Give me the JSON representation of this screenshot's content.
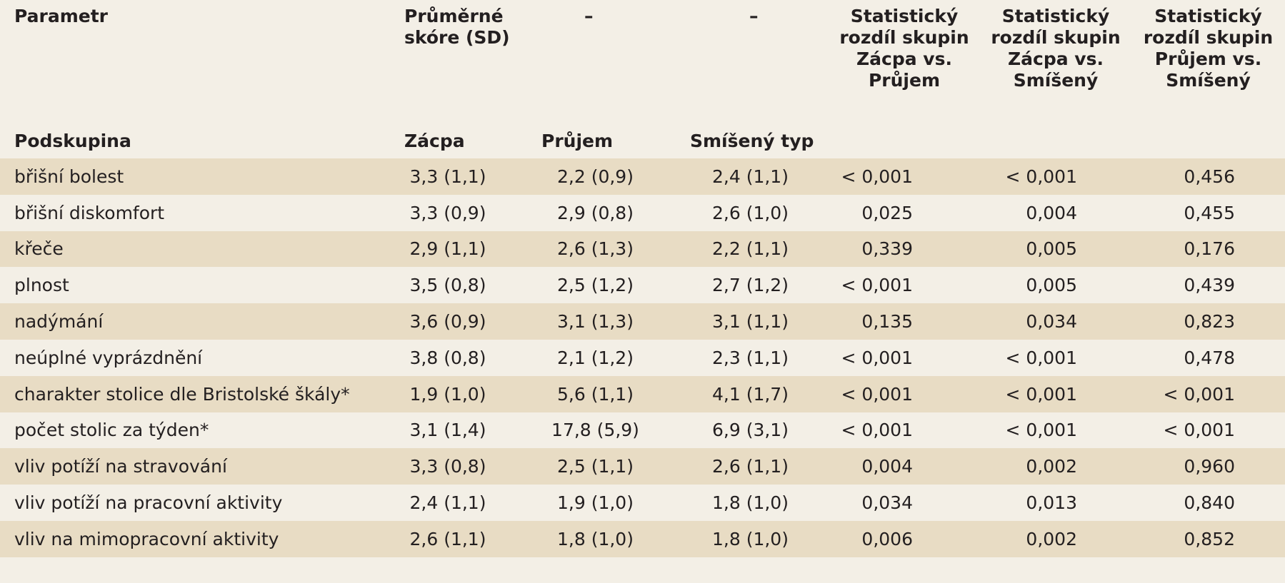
{
  "header": {
    "row1": {
      "parametr": "Parametr",
      "mean_score_line1": "Průměrné",
      "mean_score_line2": "skóre (SD)",
      "dash1": "–",
      "dash2": "–",
      "stat1": [
        "Statistický",
        "rozdíl skupin",
        "Zácpa vs.",
        "Průjem"
      ],
      "stat2": [
        "Statistický",
        "rozdíl skupin",
        "Zácpa vs.",
        "Smíšený"
      ],
      "stat3": [
        "Statistický",
        "rozdíl skupin",
        "Průjem vs.",
        "Smíšený"
      ]
    },
    "row2": {
      "podskupina": "Podskupina",
      "zacpa": "Zácpa",
      "prujem": "Průjem",
      "smiseny": "Smíšený typ"
    }
  },
  "rows": [
    {
      "label": "břišní bolest",
      "zacpa": "3,3 (1,1)",
      "prujem": "2,2 (0,9)",
      "smiseny": "2,4 (1,1)",
      "p1": "< 0,001",
      "p2": "< 0,001",
      "p3": "0,456"
    },
    {
      "label": "břišní diskomfort",
      "zacpa": "3,3 (0,9)",
      "prujem": "2,9 (0,8)",
      "smiseny": "2,6 (1,0)",
      "p1": "0,025",
      "p2": "0,004",
      "p3": "0,455"
    },
    {
      "label": "křeče",
      "zacpa": "2,9 (1,1)",
      "prujem": "2,6 (1,3)",
      "smiseny": "2,2 (1,1)",
      "p1": "0,339",
      "p2": "0,005",
      "p3": "0,176"
    },
    {
      "label": "plnost",
      "zacpa": "3,5 (0,8)",
      "prujem": "2,5 (1,2)",
      "smiseny": "2,7 (1,2)",
      "p1": "< 0,001",
      "p2": "0,005",
      "p3": "0,439"
    },
    {
      "label": "nadýmání",
      "zacpa": "3,6 (0,9)",
      "prujem": "3,1 (1,3)",
      "smiseny": "3,1 (1,1)",
      "p1": "0,135",
      "p2": "0,034",
      "p3": "0,823"
    },
    {
      "label": "neúplné vyprázdnění",
      "zacpa": "3,8 (0,8)",
      "prujem": "2,1 (1,2)",
      "smiseny": "2,3 (1,1)",
      "p1": "< 0,001",
      "p2": "< 0,001",
      "p3": "0,478"
    },
    {
      "label": "charakter stolice dle Bristolské škály*",
      "zacpa": "1,9 (1,0)",
      "prujem": "5,6 (1,1)",
      "smiseny": "4,1 (1,7)",
      "p1": "< 0,001",
      "p2": "< 0,001",
      "p3": "< 0,001"
    },
    {
      "label": "počet stolic za týden*",
      "zacpa": "3,1 (1,4)",
      "prujem": "17,8 (5,9)",
      "smiseny": "6,9 (3,1)",
      "p1": "< 0,001",
      "p2": "< 0,001",
      "p3": "< 0,001"
    },
    {
      "label": "vliv potíží na stravování",
      "zacpa": "3,3 (0,8)",
      "prujem": "2,5 (1,1)",
      "smiseny": "2,6 (1,1)",
      "p1": "0,004",
      "p2": "0,002",
      "p3": "0,960"
    },
    {
      "label": "vliv potíží na pracovní aktivity",
      "zacpa": "2,4 (1,1)",
      "prujem": "1,9 (1,0)",
      "smiseny": "1,8 (1,0)",
      "p1": "0,034",
      "p2": "0,013",
      "p3": "0,840"
    },
    {
      "label": "vliv na mimopracovní aktivity",
      "zacpa": "2,6 (1,1)",
      "prujem": "1,8 (1,0)",
      "smiseny": "1,8 (1,0)",
      "p1": "0,006",
      "p2": "0,002",
      "p3": "0,852"
    }
  ],
  "colors": {
    "header_bg": "#f3efe6",
    "row_odd": "#e8dcc4",
    "row_even": "#f3efe6",
    "text": "#231f20"
  }
}
